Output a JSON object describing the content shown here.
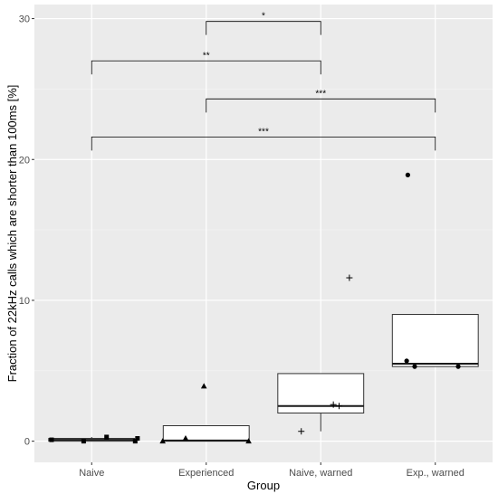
{
  "chart_data": {
    "type": "boxplot",
    "xlabel": "Group",
    "ylabel": "Fraction of 22kHz calls which are shorter than 100ms [%]",
    "categories": [
      "Naive",
      "Experienced",
      "Naive, warned",
      "Exp., warned"
    ],
    "ylim": [
      -1.5,
      31
    ],
    "yticks": [
      0,
      10,
      20,
      30
    ],
    "grid": true,
    "boxes": [
      {
        "category": "Naive",
        "q1": 0,
        "median": 0.1,
        "q3": 0.2,
        "whisker_low": 0,
        "whisker_high": 0.3
      },
      {
        "category": "Experienced",
        "q1": 0,
        "median": 0.05,
        "q3": 1.1,
        "whisker_low": 0,
        "whisker_high": 1.1
      },
      {
        "category": "Naive, warned",
        "q1": 2.0,
        "median": 2.5,
        "q3": 4.8,
        "whisker_low": 0.7,
        "whisker_high": 4.8
      },
      {
        "category": "Exp., warned",
        "q1": 5.3,
        "median": 5.5,
        "q3": 9.0,
        "whisker_low": 5.3,
        "whisker_high": 9.0
      }
    ],
    "points": [
      {
        "category": "Naive",
        "offset": -0.35,
        "y": 0.1,
        "shape": "square"
      },
      {
        "category": "Naive",
        "offset": 0.38,
        "y": 0.0,
        "shape": "square"
      },
      {
        "category": "Naive",
        "offset": -0.07,
        "y": 0.0,
        "shape": "square"
      },
      {
        "category": "Naive",
        "offset": 0.13,
        "y": 0.3,
        "shape": "square"
      },
      {
        "category": "Naive",
        "offset": 0.4,
        "y": 0.2,
        "shape": "square"
      },
      {
        "category": "Experienced",
        "offset": -0.38,
        "y": 0.0,
        "shape": "triangle"
      },
      {
        "category": "Experienced",
        "offset": -0.18,
        "y": 0.2,
        "shape": "triangle"
      },
      {
        "category": "Experienced",
        "offset": -0.02,
        "y": 3.9,
        "shape": "triangle"
      },
      {
        "category": "Experienced",
        "offset": 0.37,
        "y": 0.0,
        "shape": "triangle"
      },
      {
        "category": "Naive, warned",
        "offset": -0.17,
        "y": 0.7,
        "shape": "plus"
      },
      {
        "category": "Naive, warned",
        "offset": 0.11,
        "y": 2.6,
        "shape": "plus"
      },
      {
        "category": "Naive, warned",
        "offset": 0.16,
        "y": 2.5,
        "shape": "plus"
      },
      {
        "category": "Naive, warned",
        "offset": 0.25,
        "y": 11.6,
        "shape": "plus"
      },
      {
        "category": "Exp., warned",
        "offset": -0.24,
        "y": 18.9,
        "shape": "circle"
      },
      {
        "category": "Exp., warned",
        "offset": -0.25,
        "y": 5.7,
        "shape": "circle"
      },
      {
        "category": "Exp., warned",
        "offset": -0.18,
        "y": 5.3,
        "shape": "circle"
      },
      {
        "category": "Exp., warned",
        "offset": 0.2,
        "y": 5.3,
        "shape": "circle"
      }
    ],
    "significance": [
      {
        "from": "Experienced",
        "to": "Naive, warned",
        "y": 29.8,
        "label": "*"
      },
      {
        "from": "Naive",
        "to": "Naive, warned",
        "y": 27.0,
        "label": "**"
      },
      {
        "from": "Experienced",
        "to": "Exp., warned",
        "y": 24.3,
        "label": "***"
      },
      {
        "from": "Naive",
        "to": "Exp., warned",
        "y": 21.6,
        "label": "***"
      }
    ]
  }
}
